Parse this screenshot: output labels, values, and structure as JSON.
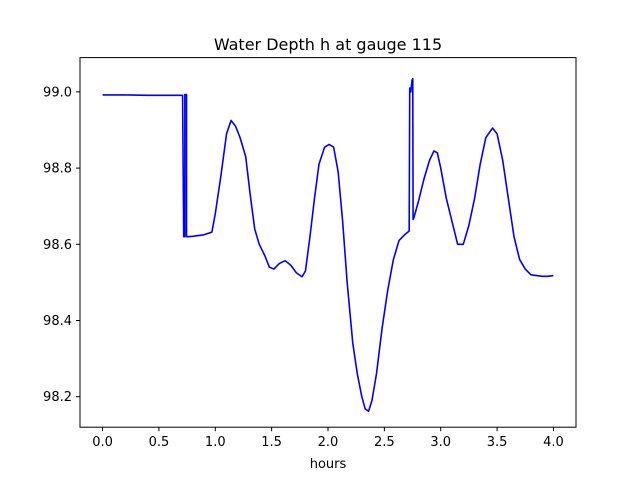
{
  "chart_data": {
    "type": "line",
    "title": "Water Depth h at gauge 115",
    "xlabel": "hours",
    "ylabel": "",
    "xlim": [
      -0.2,
      4.2
    ],
    "ylim": [
      98.12,
      99.09
    ],
    "x_ticks": [
      {
        "value": 0.0,
        "label": "0.0"
      },
      {
        "value": 0.5,
        "label": "0.5"
      },
      {
        "value": 1.0,
        "label": "1.0"
      },
      {
        "value": 1.5,
        "label": "1.5"
      },
      {
        "value": 2.0,
        "label": "2.0"
      },
      {
        "value": 2.5,
        "label": "2.5"
      },
      {
        "value": 3.0,
        "label": "3.0"
      },
      {
        "value": 3.5,
        "label": "3.5"
      },
      {
        "value": 4.0,
        "label": "4.0"
      }
    ],
    "y_ticks": [
      {
        "value": 98.2,
        "label": "98.2"
      },
      {
        "value": 98.4,
        "label": "98.4"
      },
      {
        "value": 98.6,
        "label": "98.6"
      },
      {
        "value": 98.8,
        "label": "98.8"
      },
      {
        "value": 99.0,
        "label": "99.0"
      }
    ],
    "grid": false,
    "series": [
      {
        "color": "#0000ff",
        "x": [
          0.0,
          0.2,
          0.4,
          0.6,
          0.71,
          0.72,
          0.73,
          0.73,
          0.745,
          0.745,
          0.76,
          0.8,
          0.9,
          0.97,
          1.0,
          1.05,
          1.1,
          1.14,
          1.18,
          1.22,
          1.27,
          1.31,
          1.35,
          1.39,
          1.44,
          1.48,
          1.52,
          1.57,
          1.62,
          1.67,
          1.72,
          1.77,
          1.8,
          1.84,
          1.88,
          1.92,
          1.97,
          2.01,
          2.05,
          2.09,
          2.13,
          2.17,
          2.22,
          2.26,
          2.3,
          2.33,
          2.36,
          2.39,
          2.43,
          2.48,
          2.53,
          2.58,
          2.63,
          2.68,
          2.72,
          2.725,
          2.735,
          2.745,
          2.752,
          2.755,
          2.762,
          2.8,
          2.85,
          2.9,
          2.94,
          2.97,
          3.0,
          3.05,
          3.1,
          3.15,
          3.2,
          3.25,
          3.3,
          3.35,
          3.4,
          3.46,
          3.5,
          3.55,
          3.6,
          3.65,
          3.7,
          3.75,
          3.8,
          3.85,
          3.9,
          3.95,
          4.0
        ],
        "y": [
          98.992,
          98.992,
          98.991,
          98.991,
          98.991,
          98.62,
          98.62,
          98.993,
          98.993,
          98.62,
          98.62,
          98.621,
          98.625,
          98.632,
          98.68,
          98.78,
          98.89,
          98.925,
          98.91,
          98.88,
          98.83,
          98.73,
          98.64,
          98.6,
          98.57,
          98.54,
          98.535,
          98.55,
          98.557,
          98.545,
          98.525,
          98.515,
          98.53,
          98.62,
          98.72,
          98.81,
          98.855,
          98.862,
          98.855,
          98.79,
          98.66,
          98.5,
          98.34,
          98.26,
          98.2,
          98.168,
          98.162,
          98.19,
          98.26,
          98.38,
          98.48,
          98.56,
          98.61,
          98.625,
          98.635,
          99.01,
          99.0,
          99.03,
          99.035,
          98.665,
          98.67,
          98.71,
          98.77,
          98.82,
          98.845,
          98.84,
          98.8,
          98.72,
          98.66,
          98.6,
          98.6,
          98.65,
          98.72,
          98.81,
          98.88,
          98.905,
          98.89,
          98.82,
          98.72,
          98.62,
          98.56,
          98.535,
          98.52,
          98.518,
          98.516,
          98.516,
          98.518
        ]
      }
    ]
  }
}
